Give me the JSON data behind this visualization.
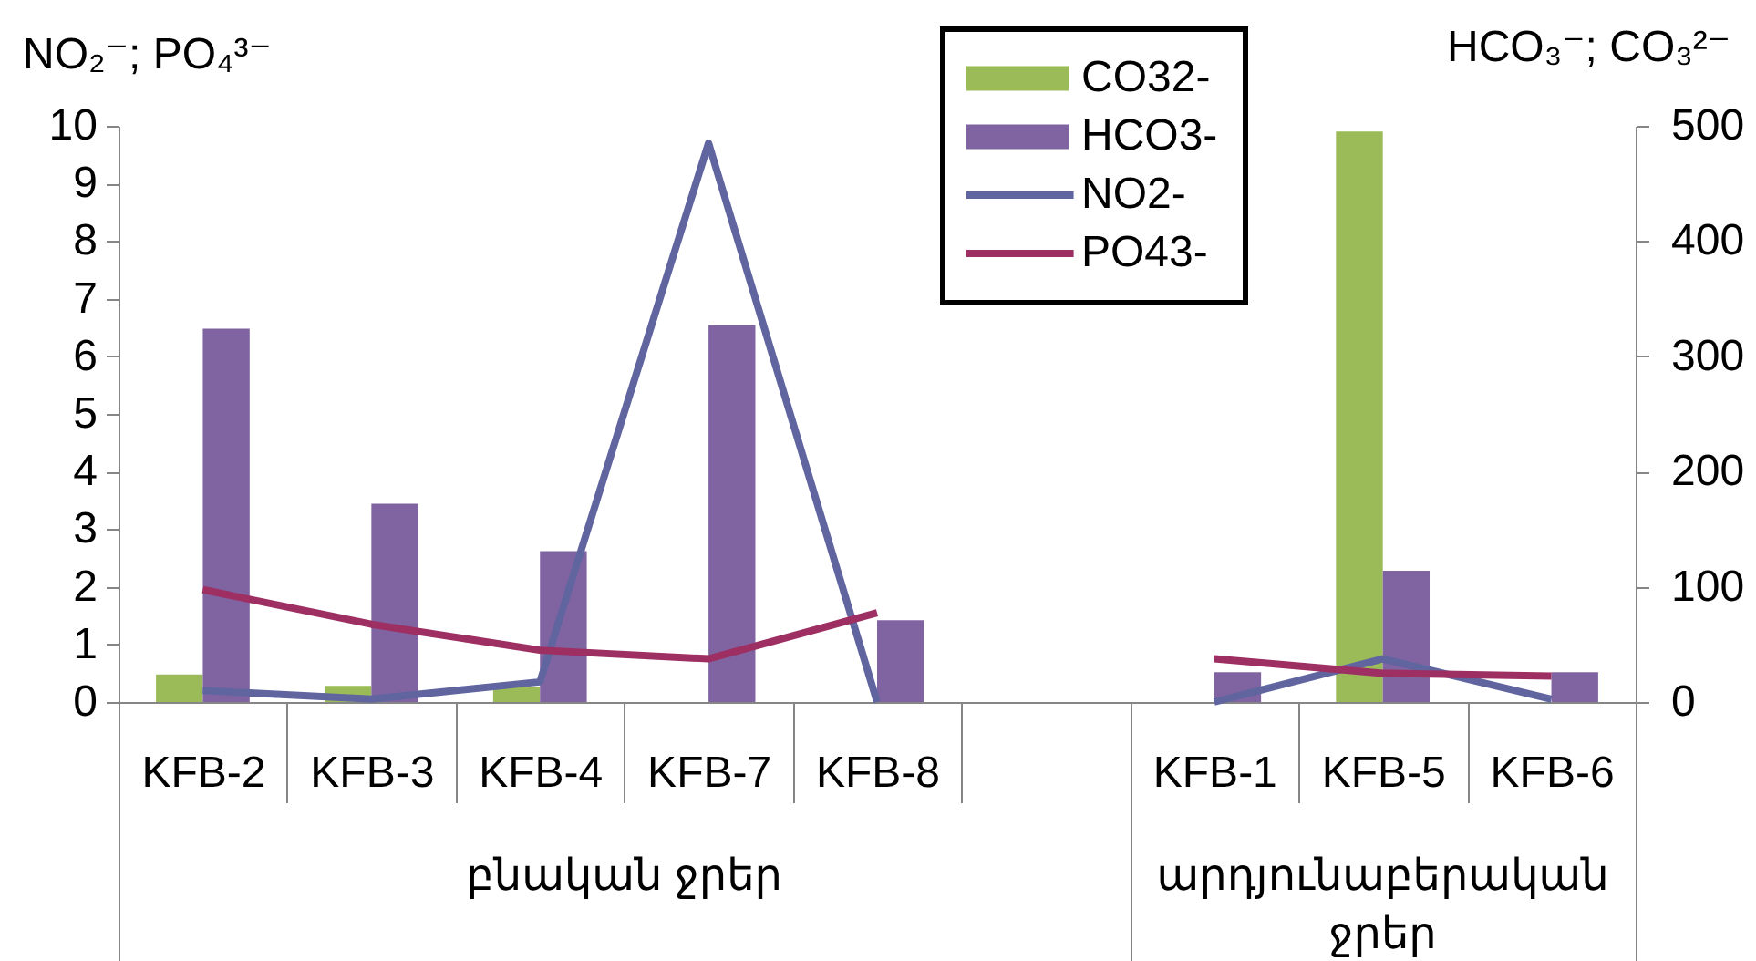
{
  "chart_data": {
    "type": "bar",
    "categories": [
      "KFB-2",
      "KFB-3",
      "KFB-4",
      "KFB-7",
      "KFB-8",
      null,
      "KFB-1",
      "KFB-5",
      "KFB-6"
    ],
    "series": [
      {
        "name": "CO32-",
        "color": "#9bbb59",
        "axis": "y2",
        "values": [
          24,
          14,
          13,
          null,
          null,
          null,
          null,
          495,
          null
        ]
      },
      {
        "name": "HCO3-",
        "color": "#8064a2",
        "axis": "y2",
        "values": [
          324,
          172,
          131,
          327,
          71,
          null,
          26,
          114,
          26
        ]
      },
      {
        "name": "NO2-",
        "color": "#6065a0",
        "type": "line",
        "values": [
          0.2,
          0.05,
          0.35,
          9.7,
          0,
          null,
          0,
          0.75,
          0.05
        ]
      },
      {
        "name": "PO43-",
        "color": "#9e2f63",
        "type": "line",
        "values": [
          1.95,
          1.35,
          0.9,
          0.75,
          1.55,
          null,
          0.75,
          0.5,
          0.45
        ]
      }
    ],
    "ylabel": "NO₂⁻; PO₄³⁻",
    "y2label": "HCO₃⁻; CO₃²⁻",
    "ylim": [
      0,
      10
    ],
    "yticks": [
      0,
      1,
      2,
      3,
      4,
      5,
      6,
      7,
      8,
      9,
      10
    ],
    "y2lim": [
      0,
      500
    ],
    "y2ticks": [
      0,
      100,
      200,
      300,
      400,
      500
    ],
    "legend": "top",
    "annotations": [
      "բնական ջրեր",
      "արդյունաբերական ջրեր"
    ]
  }
}
